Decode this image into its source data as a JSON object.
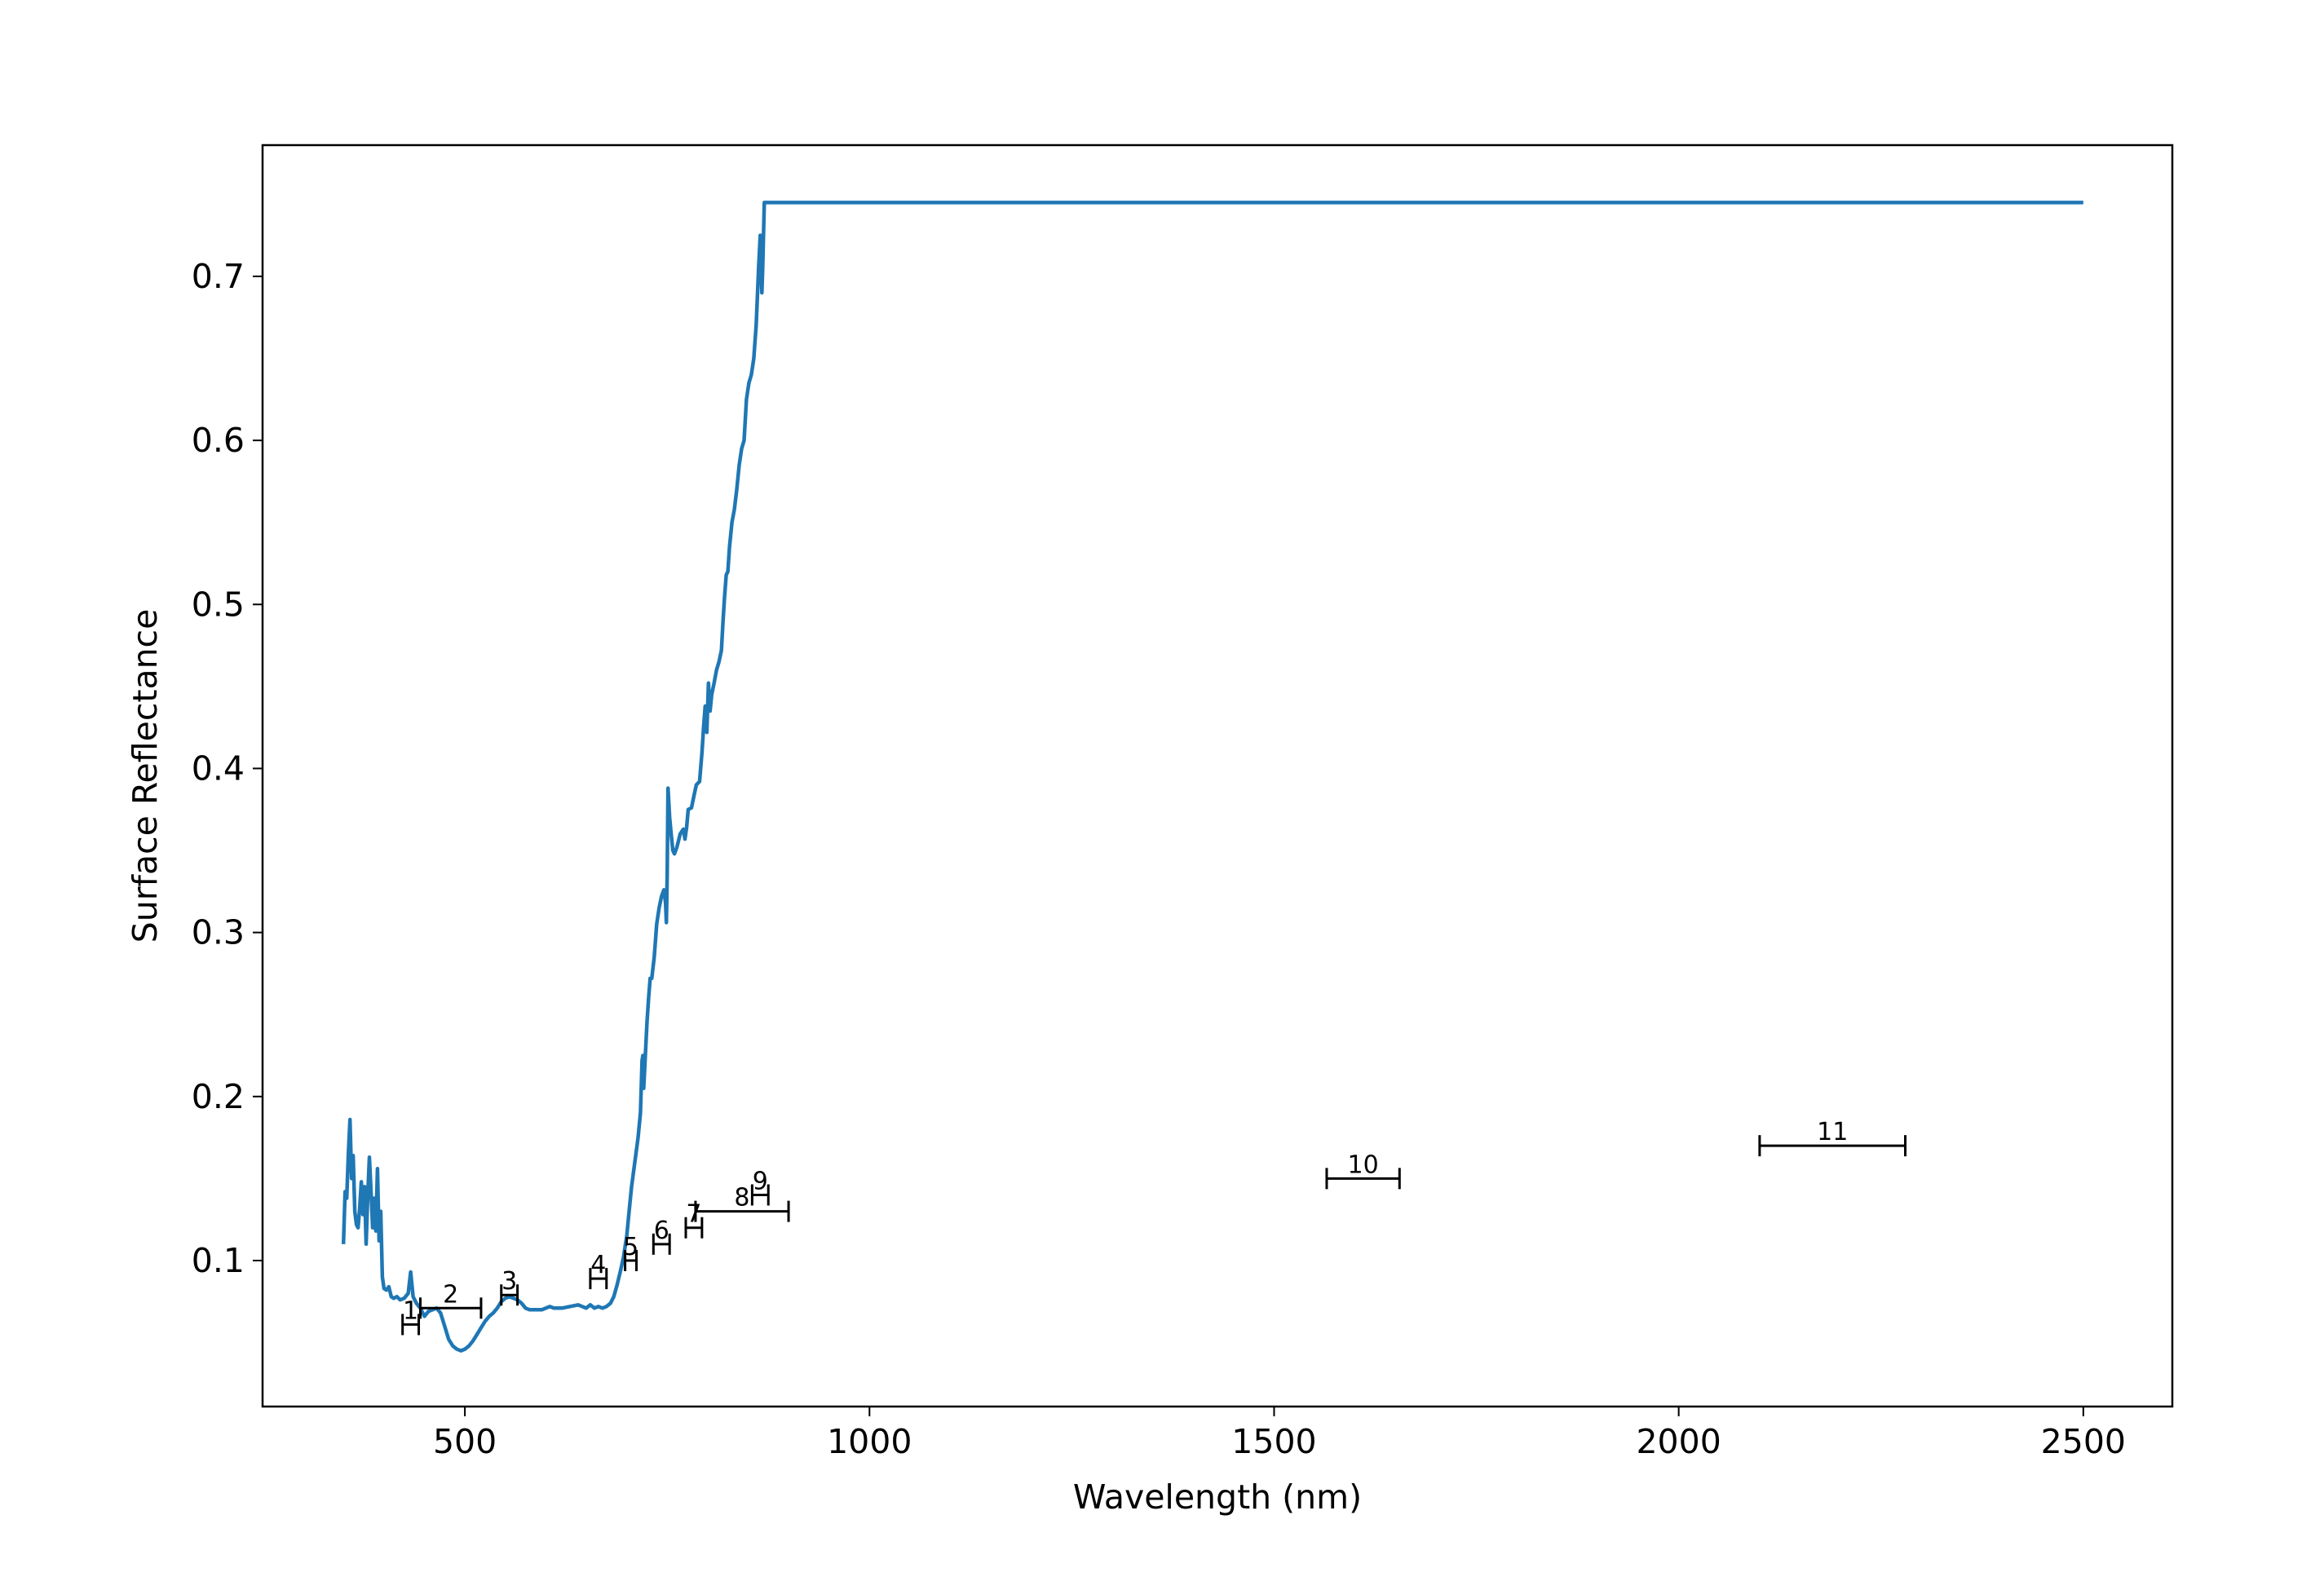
{
  "chart_data": {
    "type": "line",
    "xlabel": "Wavelength (nm)",
    "ylabel": "Surface Reflectance",
    "xlim": [
      250,
      2610
    ],
    "ylim": [
      0.011,
      0.78
    ],
    "x_ticks": [
      500,
      1000,
      1500,
      2000,
      2500
    ],
    "y_ticks": [
      0.1,
      0.2,
      0.3,
      0.4,
      0.5,
      0.6,
      0.7
    ],
    "x_tick_labels": [
      "500",
      "1000",
      "1500",
      "2000",
      "2500"
    ],
    "y_tick_labels": [
      "0.1",
      "0.2",
      "0.3",
      "0.4",
      "0.5",
      "0.6",
      "0.7"
    ],
    "grid": false,
    "legend": "none",
    "series": [
      {
        "color": "#1f77b4",
        "points": [
          [
            350,
            0.11
          ],
          [
            352,
            0.142
          ],
          [
            354,
            0.138
          ],
          [
            356,
            0.165
          ],
          [
            358,
            0.186
          ],
          [
            360,
            0.15
          ],
          [
            362,
            0.164
          ],
          [
            364,
            0.13
          ],
          [
            366,
            0.122
          ],
          [
            368,
            0.12
          ],
          [
            370,
            0.132
          ],
          [
            372,
            0.148
          ],
          [
            374,
            0.128
          ],
          [
            376,
            0.145
          ],
          [
            378,
            0.11
          ],
          [
            380,
            0.14
          ],
          [
            382,
            0.163
          ],
          [
            384,
            0.142
          ],
          [
            386,
            0.12
          ],
          [
            388,
            0.138
          ],
          [
            390,
            0.118
          ],
          [
            392,
            0.156
          ],
          [
            394,
            0.112
          ],
          [
            396,
            0.13
          ],
          [
            398,
            0.09
          ],
          [
            400,
            0.083
          ],
          [
            403,
            0.082
          ],
          [
            406,
            0.084
          ],
          [
            409,
            0.078
          ],
          [
            412,
            0.077
          ],
          [
            416,
            0.078
          ],
          [
            420,
            0.076
          ],
          [
            425,
            0.077
          ],
          [
            430,
            0.08
          ],
          [
            433,
            0.093
          ],
          [
            436,
            0.078
          ],
          [
            440,
            0.074
          ],
          [
            445,
            0.071
          ],
          [
            450,
            0.066
          ],
          [
            455,
            0.069
          ],
          [
            460,
            0.07
          ],
          [
            465,
            0.071
          ],
          [
            470,
            0.068
          ],
          [
            475,
            0.06
          ],
          [
            480,
            0.052
          ],
          [
            485,
            0.048
          ],
          [
            490,
            0.046
          ],
          [
            495,
            0.045
          ],
          [
            500,
            0.046
          ],
          [
            505,
            0.048
          ],
          [
            510,
            0.051
          ],
          [
            515,
            0.055
          ],
          [
            520,
            0.059
          ],
          [
            525,
            0.063
          ],
          [
            530,
            0.066
          ],
          [
            535,
            0.068
          ],
          [
            540,
            0.071
          ],
          [
            545,
            0.075
          ],
          [
            550,
            0.077
          ],
          [
            555,
            0.078
          ],
          [
            560,
            0.077
          ],
          [
            565,
            0.076
          ],
          [
            570,
            0.074
          ],
          [
            575,
            0.071
          ],
          [
            580,
            0.07
          ],
          [
            585,
            0.07
          ],
          [
            590,
            0.07
          ],
          [
            595,
            0.07
          ],
          [
            600,
            0.071
          ],
          [
            605,
            0.072
          ],
          [
            610,
            0.071
          ],
          [
            620,
            0.071
          ],
          [
            630,
            0.072
          ],
          [
            640,
            0.073
          ],
          [
            650,
            0.071
          ],
          [
            655,
            0.073
          ],
          [
            660,
            0.071
          ],
          [
            665,
            0.072
          ],
          [
            670,
            0.071
          ],
          [
            675,
            0.072
          ],
          [
            680,
            0.074
          ],
          [
            684,
            0.078
          ],
          [
            688,
            0.085
          ],
          [
            692,
            0.093
          ],
          [
            696,
            0.102
          ],
          [
            700,
            0.115
          ],
          [
            703,
            0.13
          ],
          [
            706,
            0.145
          ],
          [
            710,
            0.16
          ],
          [
            714,
            0.175
          ],
          [
            717,
            0.19
          ],
          [
            719,
            0.222
          ],
          [
            720,
            0.225
          ],
          [
            721,
            0.205
          ],
          [
            723,
            0.225
          ],
          [
            725,
            0.245
          ],
          [
            727,
            0.26
          ],
          [
            729,
            0.272
          ],
          [
            731,
            0.272
          ],
          [
            734,
            0.285
          ],
          [
            737,
            0.305
          ],
          [
            740,
            0.315
          ],
          [
            743,
            0.322
          ],
          [
            746,
            0.326
          ],
          [
            748,
            0.318
          ],
          [
            749,
            0.306
          ],
          [
            750,
            0.335
          ],
          [
            751,
            0.388
          ],
          [
            753,
            0.37
          ],
          [
            755,
            0.36
          ],
          [
            757,
            0.35
          ],
          [
            759,
            0.348
          ],
          [
            762,
            0.352
          ],
          [
            766,
            0.36
          ],
          [
            770,
            0.363
          ],
          [
            772,
            0.357
          ],
          [
            774,
            0.364
          ],
          [
            776,
            0.375
          ],
          [
            780,
            0.376
          ],
          [
            783,
            0.383
          ],
          [
            786,
            0.39
          ],
          [
            790,
            0.392
          ],
          [
            793,
            0.41
          ],
          [
            795,
            0.425
          ],
          [
            797,
            0.438
          ],
          [
            799,
            0.422
          ],
          [
            801,
            0.452
          ],
          [
            803,
            0.435
          ],
          [
            805,
            0.445
          ],
          [
            808,
            0.452
          ],
          [
            811,
            0.46
          ],
          [
            814,
            0.465
          ],
          [
            817,
            0.472
          ],
          [
            819,
            0.49
          ],
          [
            821,
            0.505
          ],
          [
            823,
            0.518
          ],
          [
            825,
            0.52
          ],
          [
            827,
            0.535
          ],
          [
            830,
            0.55
          ],
          [
            833,
            0.558
          ],
          [
            836,
            0.57
          ],
          [
            839,
            0.585
          ],
          [
            842,
            0.595
          ],
          [
            845,
            0.6
          ],
          [
            848,
            0.625
          ],
          [
            851,
            0.635
          ],
          [
            854,
            0.64
          ],
          [
            857,
            0.65
          ],
          [
            860,
            0.67
          ],
          [
            863,
            0.705
          ],
          [
            865,
            0.725
          ],
          [
            867,
            0.69
          ],
          [
            868,
            0.705
          ],
          [
            870,
            0.745
          ],
          [
            900,
            0.745
          ],
          [
            2500,
            0.745
          ]
        ]
      }
    ],
    "bands": [
      {
        "label": "1",
        "x1": 423,
        "x2": 443,
        "y": 0.061,
        "color": "#000000"
      },
      {
        "label": "2",
        "x1": 445,
        "x2": 520,
        "y": 0.071,
        "color": "#000000"
      },
      {
        "label": "3",
        "x1": 545,
        "x2": 565,
        "y": 0.079,
        "color": "#000000"
      },
      {
        "label": "4",
        "x1": 655,
        "x2": 675,
        "y": 0.089,
        "color": "#000000"
      },
      {
        "label": "5",
        "x1": 698,
        "x2": 712,
        "y": 0.1,
        "color": "#000000"
      },
      {
        "label": "6",
        "x1": 733,
        "x2": 753,
        "y": 0.11,
        "color": "#000000"
      },
      {
        "label": "7",
        "x1": 773,
        "x2": 793,
        "y": 0.12,
        "color": "#000000"
      },
      {
        "label": "8",
        "x1": 785,
        "x2": 900,
        "y": 0.13,
        "color": "#000000"
      },
      {
        "label": "9",
        "x1": 855,
        "x2": 875,
        "y": 0.14,
        "color": "#000000"
      },
      {
        "label": "10",
        "x1": 1565,
        "x2": 1655,
        "y": 0.15,
        "color": "#000000"
      },
      {
        "label": "11",
        "x1": 2100,
        "x2": 2280,
        "y": 0.17,
        "color": "#000000"
      }
    ]
  }
}
